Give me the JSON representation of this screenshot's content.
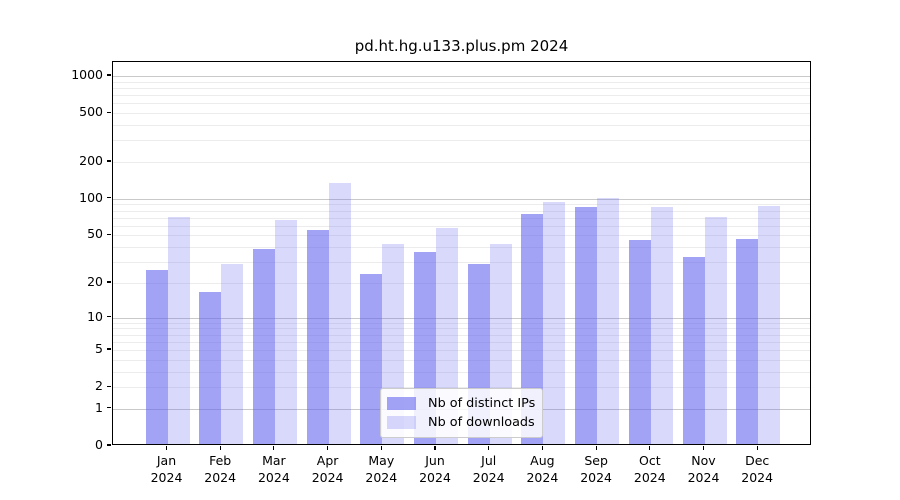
{
  "chart_data": {
    "type": "bar",
    "title": "pd.ht.hg.u133.plus.pm 2024",
    "year_label": "2024",
    "categories": [
      "Jan",
      "Feb",
      "Mar",
      "Apr",
      "May",
      "Jun",
      "Jul",
      "Aug",
      "Sep",
      "Oct",
      "Nov",
      "Dec"
    ],
    "series": [
      {
        "name": "Nb of distinct IPs",
        "color": "rgba(102,102,240,0.60)",
        "values": [
          25,
          16,
          37,
          53,
          23,
          35,
          28,
          72,
          83,
          44,
          32,
          45
        ]
      },
      {
        "name": "Nb of downloads",
        "color": "rgba(102,102,240,0.25)",
        "values": [
          69,
          28,
          65,
          130,
          41,
          55,
          41,
          90,
          97,
          82,
          68,
          84
        ]
      }
    ],
    "y_scale": "log1p",
    "y_ticks": [
      0,
      1,
      2,
      5,
      10,
      20,
      50,
      100,
      200,
      500,
      1000
    ],
    "ylim": [
      0,
      1300
    ],
    "xlabel": "",
    "ylabel": "",
    "grid": "horizontal",
    "legend": {
      "position": "bottom-center",
      "entries": [
        "Nb of distinct IPs",
        "Nb of downloads"
      ]
    },
    "colors": {
      "grid_major": "#c9c9c9",
      "grid_minor": "#ececec",
      "axis": "#000000",
      "text": "#000000",
      "legend_border": "#cccccc"
    }
  }
}
